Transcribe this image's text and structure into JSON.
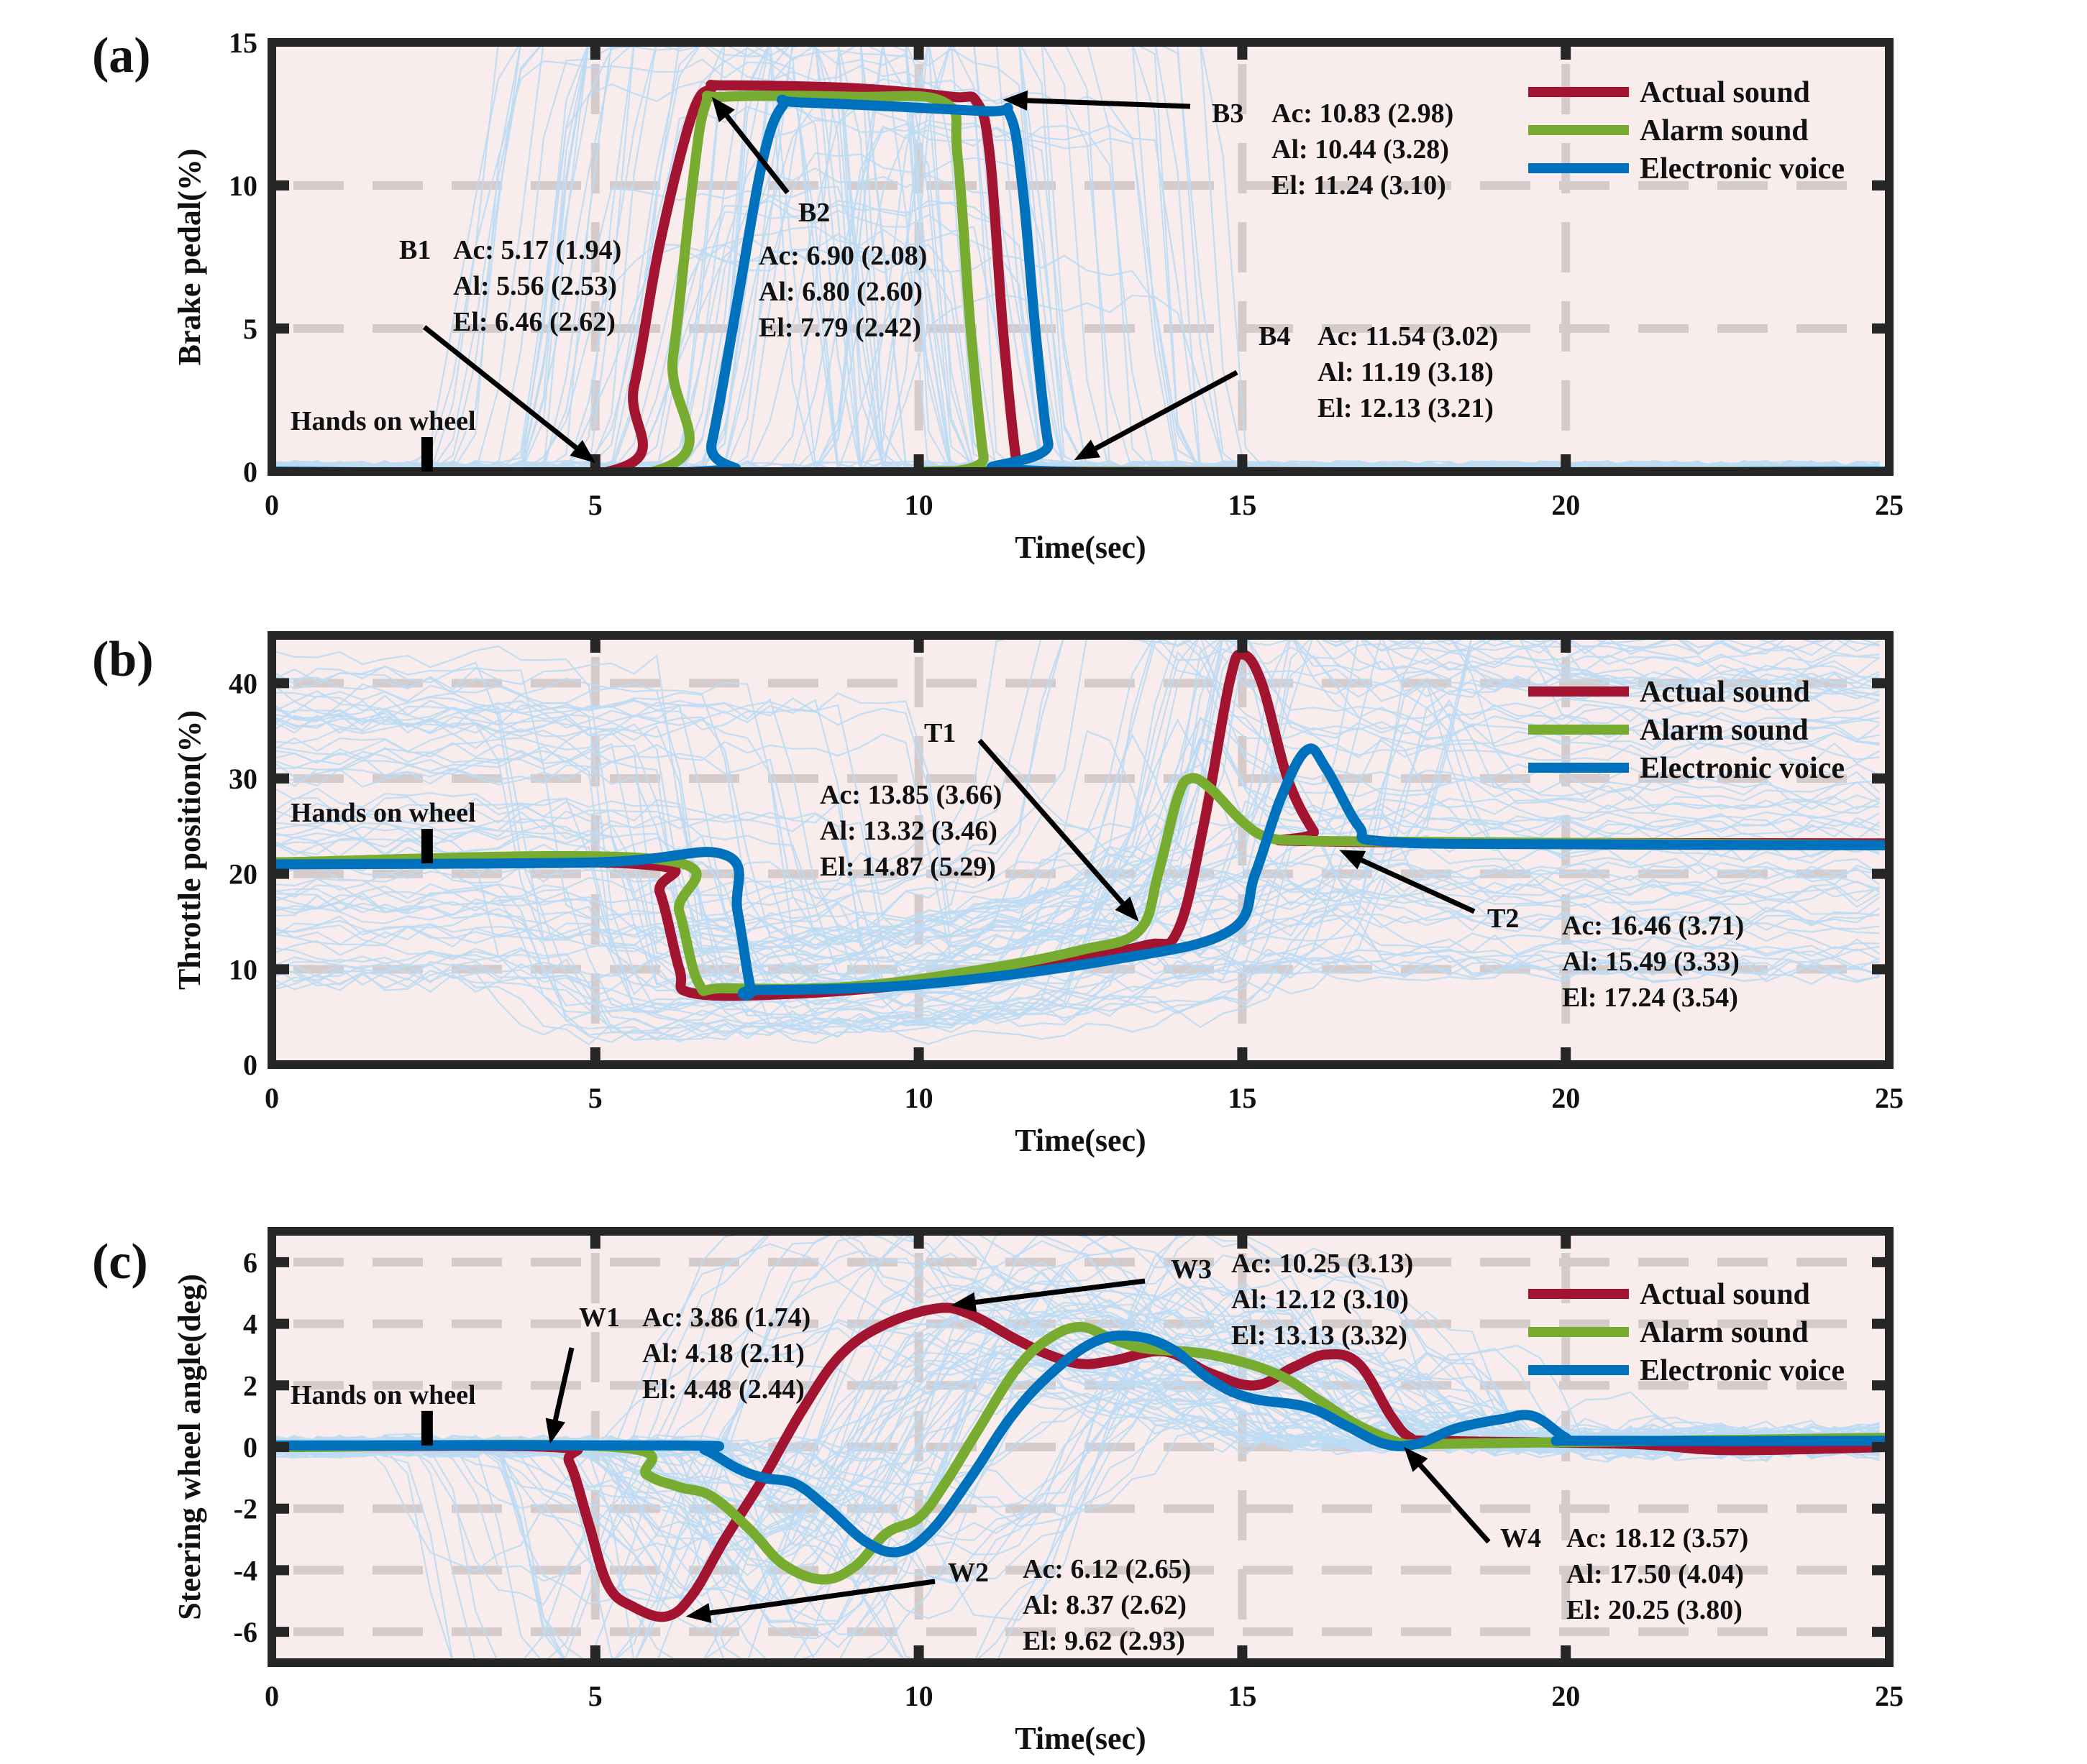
{
  "figure": {
    "colors": {
      "actual": "#a2142f",
      "alarm": "#77ac30",
      "electronic": "#0072bd",
      "traces": "#bcdcf4",
      "background": "#f8ecec",
      "grid": "#d5cbcb"
    },
    "legend_labels": [
      "Actual sound",
      "Alarm sound",
      "Electronic voice"
    ]
  },
  "chart_data": [
    {
      "type": "line",
      "panel_label": "(a)",
      "title": "",
      "xlabel": "Time(sec)",
      "ylabel": "Brake pedal(%)",
      "xlim": [
        0,
        25
      ],
      "ylim": [
        0,
        15
      ],
      "xticks": [
        0,
        5,
        10,
        15,
        20,
        25
      ],
      "yticks": [
        0,
        5,
        10,
        15
      ],
      "grid": true,
      "legend_position": "top-right",
      "hands_on_wheel": {
        "label": "Hands on wheel",
        "time": 2.4
      },
      "series": [
        {
          "name": "Actual sound",
          "key": "actual",
          "points": [
            [
              0,
              0
            ],
            [
              5.2,
              0
            ],
            [
              5.6,
              3
            ],
            [
              6.0,
              8
            ],
            [
              6.5,
              12.5
            ],
            [
              6.8,
              13.4
            ],
            [
              7,
              13.5
            ],
            [
              9,
              13.4
            ],
            [
              10.5,
              13.1
            ],
            [
              10.9,
              12.9
            ],
            [
              11.1,
              11
            ],
            [
              11.3,
              5
            ],
            [
              11.5,
              0.5
            ],
            [
              11.6,
              0
            ],
            [
              25,
              0
            ]
          ]
        },
        {
          "name": "Alarm sound",
          "key": "alarm",
          "points": [
            [
              0,
              0
            ],
            [
              5.9,
              0
            ],
            [
              6.2,
              4
            ],
            [
              6.5,
              10
            ],
            [
              6.7,
              12.8
            ],
            [
              7,
              13.1
            ],
            [
              9,
              13.1
            ],
            [
              10.4,
              12.9
            ],
            [
              10.6,
              11
            ],
            [
              10.8,
              5
            ],
            [
              11.0,
              0.5
            ],
            [
              11.1,
              0
            ],
            [
              25,
              0
            ]
          ]
        },
        {
          "name": "Electronic voice",
          "key": "electronic",
          "points": [
            [
              0,
              0
            ],
            [
              6.6,
              0
            ],
            [
              6.8,
              1
            ],
            [
              7.2,
              6
            ],
            [
              7.6,
              11
            ],
            [
              7.9,
              12.8
            ],
            [
              8.2,
              12.9
            ],
            [
              11,
              12.6
            ],
            [
              11.4,
              12.5
            ],
            [
              11.6,
              10
            ],
            [
              11.8,
              5
            ],
            [
              12.0,
              1
            ],
            [
              12.2,
              0
            ],
            [
              25,
              0
            ]
          ]
        }
      ],
      "annotations": [
        {
          "id": "B1",
          "target": [
            5.0,
            0.3
          ],
          "lines": [
            "Ac: 5.17 (1.94)",
            "Al: 5.56 (2.53)",
            "El: 6.46 (2.62)"
          ]
        },
        {
          "id": "B2",
          "target": [
            6.8,
            13.1
          ],
          "lines": [
            "Ac: 6.90 (2.08)",
            "Al: 6.80 (2.60)",
            "El: 7.79 (2.42)"
          ]
        },
        {
          "id": "B3",
          "target": [
            11.3,
            13.0
          ],
          "lines": [
            "Ac: 10.83 (2.98)",
            "Al: 10.44 (3.28)",
            "El: 11.24 (3.10)"
          ]
        },
        {
          "id": "B4",
          "target": [
            12.4,
            0.4
          ],
          "lines": [
            "Ac: 11.54 (3.02)",
            "Al: 11.19 (3.18)",
            "El: 12.13 (3.21)"
          ]
        }
      ]
    },
    {
      "type": "line",
      "panel_label": "(b)",
      "title": "",
      "xlabel": "Time(sec)",
      "ylabel": "Throttle position(%)",
      "xlim": [
        0,
        25
      ],
      "ylim": [
        0,
        45
      ],
      "xticks": [
        0,
        5,
        10,
        15,
        20,
        25
      ],
      "yticks": [
        0,
        10,
        20,
        30,
        40
      ],
      "grid": true,
      "legend_position": "top-right",
      "hands_on_wheel": {
        "label": "Hands on wheel",
        "time": 2.4
      },
      "series": [
        {
          "name": "Actual sound",
          "key": "actual",
          "points": [
            [
              0,
              21.2
            ],
            [
              5.7,
              21
            ],
            [
              6.0,
              18
            ],
            [
              6.3,
              10
            ],
            [
              6.5,
              7.5
            ],
            [
              8,
              7.4
            ],
            [
              10,
              8.5
            ],
            [
              12,
              10.5
            ],
            [
              13.5,
              12.5
            ],
            [
              14.0,
              14
            ],
            [
              14.4,
              25
            ],
            [
              14.8,
              40
            ],
            [
              15,
              43
            ],
            [
              15.3,
              40
            ],
            [
              15.7,
              30
            ],
            [
              16.1,
              24.5
            ],
            [
              16.3,
              23.4
            ],
            [
              25,
              23.2
            ]
          ]
        },
        {
          "name": "Alarm sound",
          "key": "alarm",
          "points": [
            [
              0,
              21.2
            ],
            [
              6.0,
              21.5
            ],
            [
              6.3,
              16
            ],
            [
              6.6,
              8.5
            ],
            [
              7,
              8
            ],
            [
              9,
              8.2
            ],
            [
              11,
              10
            ],
            [
              12.5,
              12
            ],
            [
              13.4,
              14
            ],
            [
              13.7,
              20
            ],
            [
              14,
              28
            ],
            [
              14.2,
              30
            ],
            [
              14.5,
              29
            ],
            [
              15,
              25.5
            ],
            [
              15.4,
              23.8
            ],
            [
              16,
              23.5
            ],
            [
              17,
              23.4
            ],
            [
              25,
              23
            ]
          ]
        },
        {
          "name": "Electronic voice",
          "key": "electronic",
          "points": [
            [
              0,
              21
            ],
            [
              5,
              21.2
            ],
            [
              7,
              22
            ],
            [
              7.2,
              16
            ],
            [
              7.4,
              8
            ],
            [
              7.5,
              7.8
            ],
            [
              10,
              8.4
            ],
            [
              13,
              11
            ],
            [
              14.8,
              14
            ],
            [
              15.2,
              20
            ],
            [
              15.6,
              28
            ],
            [
              16,
              33
            ],
            [
              16.3,
              31
            ],
            [
              16.8,
              25
            ],
            [
              17.2,
              23.4
            ],
            [
              20,
              23.1
            ],
            [
              25,
              23
            ]
          ]
        }
      ],
      "annotations": [
        {
          "id": "T1",
          "target": [
            13.4,
            15.0
          ],
          "lines": [
            "Ac: 13.85 (3.66)",
            "Al: 13.32 (3.46)",
            "El: 14.87 (5.29)"
          ]
        },
        {
          "id": "T2",
          "target": [
            16.5,
            22.5
          ],
          "lines": [
            "Ac: 16.46 (3.71)",
            "Al: 15.49 (3.33)",
            "El: 17.24 (3.54)"
          ]
        }
      ]
    },
    {
      "type": "line",
      "panel_label": "(c)",
      "title": "",
      "xlabel": "Time(sec)",
      "ylabel": "Steering wheel angle(deg)",
      "xlim": [
        0,
        25
      ],
      "ylim": [
        -7,
        7
      ],
      "xticks": [
        0,
        5,
        10,
        15,
        20,
        25
      ],
      "yticks": [
        -6,
        -4,
        -2,
        0,
        2,
        4,
        6
      ],
      "grid": true,
      "legend_position": "top-right",
      "hands_on_wheel": {
        "label": "Hands on wheel",
        "time": 2.4
      },
      "series": [
        {
          "name": "Actual sound",
          "key": "actual",
          "points": [
            [
              0,
              0
            ],
            [
              4.3,
              0
            ],
            [
              4.6,
              -0.5
            ],
            [
              4.9,
              -2.5
            ],
            [
              5.2,
              -4.5
            ],
            [
              5.6,
              -5.2
            ],
            [
              6.1,
              -5.5
            ],
            [
              6.5,
              -4.8
            ],
            [
              7,
              -3
            ],
            [
              7.6,
              -1
            ],
            [
              8.2,
              1.2
            ],
            [
              8.8,
              3
            ],
            [
              9.5,
              4
            ],
            [
              10.3,
              4.5
            ],
            [
              10.8,
              4.3
            ],
            [
              11.5,
              3.5
            ],
            [
              12,
              3
            ],
            [
              12.5,
              2.7
            ],
            [
              13,
              2.8
            ],
            [
              13.8,
              3.1
            ],
            [
              14.5,
              2.4
            ],
            [
              15.2,
              2
            ],
            [
              15.8,
              2.6
            ],
            [
              16.3,
              3.0
            ],
            [
              16.8,
              2.7
            ],
            [
              17.3,
              1
            ],
            [
              17.6,
              0.3
            ],
            [
              18,
              0.2
            ],
            [
              21,
              0.1
            ],
            [
              22.5,
              -0.1
            ],
            [
              25,
              0
            ]
          ]
        },
        {
          "name": "Alarm sound",
          "key": "alarm",
          "points": [
            [
              0,
              0
            ],
            [
              5.3,
              0
            ],
            [
              5.8,
              -0.9
            ],
            [
              6.3,
              -1.3
            ],
            [
              6.8,
              -1.6
            ],
            [
              7.4,
              -2.7
            ],
            [
              7.9,
              -3.8
            ],
            [
              8.5,
              -4.3
            ],
            [
              9.0,
              -3.9
            ],
            [
              9.5,
              -2.8
            ],
            [
              10,
              -2.3
            ],
            [
              10.4,
              -1.2
            ],
            [
              10.9,
              0.5
            ],
            [
              11.5,
              2.5
            ],
            [
              12,
              3.5
            ],
            [
              12.5,
              3.9
            ],
            [
              13,
              3.5
            ],
            [
              13.5,
              3.2
            ],
            [
              14.5,
              3.0
            ],
            [
              15.5,
              2.4
            ],
            [
              16.2,
              1.5
            ],
            [
              16.8,
              0.7
            ],
            [
              17.5,
              0.1
            ],
            [
              18,
              0.1
            ],
            [
              25,
              0.3
            ]
          ]
        },
        {
          "name": "Electronic voice",
          "key": "electronic",
          "points": [
            [
              0,
              0.05
            ],
            [
              6.3,
              0.05
            ],
            [
              6.7,
              -0.1
            ],
            [
              7.2,
              -0.7
            ],
            [
              7.6,
              -1.0
            ],
            [
              8.1,
              -1.2
            ],
            [
              8.6,
              -2.0
            ],
            [
              9.2,
              -3.1
            ],
            [
              9.7,
              -3.4
            ],
            [
              10.2,
              -2.7
            ],
            [
              10.8,
              -1.0
            ],
            [
              11.4,
              0.9
            ],
            [
              12,
              2.3
            ],
            [
              12.7,
              3.4
            ],
            [
              13.3,
              3.6
            ],
            [
              13.9,
              3.2
            ],
            [
              14.5,
              2.2
            ],
            [
              15.1,
              1.6
            ],
            [
              16,
              1.3
            ],
            [
              16.6,
              0.7
            ],
            [
              17.2,
              0.1
            ],
            [
              17.7,
              0.1
            ],
            [
              18.3,
              0.6
            ],
            [
              19,
              0.9
            ],
            [
              19.5,
              1.0
            ],
            [
              20,
              0.3
            ],
            [
              20.3,
              0.2
            ],
            [
              25,
              0.2
            ]
          ]
        }
      ],
      "annotations": [
        {
          "id": "W1",
          "target": [
            4.3,
            0.1
          ],
          "lines": [
            "Ac: 3.86 (1.74)",
            "Al: 4.18 (2.11)",
            "El: 4.48 (2.44)"
          ]
        },
        {
          "id": "W2",
          "target": [
            6.4,
            -5.5
          ],
          "lines": [
            "Ac: 6.12 (2.65)",
            "Al: 8.37 (2.62)",
            "El: 9.62 (2.93)"
          ]
        },
        {
          "id": "W3",
          "target": [
            10.5,
            4.6
          ],
          "lines": [
            "Ac: 10.25 (3.13)",
            "Al: 12.12 (3.10)",
            "El: 13.13 (3.32)"
          ]
        },
        {
          "id": "W4",
          "target": [
            17.5,
            0.0
          ],
          "lines": [
            "Ac: 18.12 (3.57)",
            "Al: 17.50 (4.04)",
            "El: 20.25 (3.80)"
          ]
        }
      ]
    }
  ]
}
